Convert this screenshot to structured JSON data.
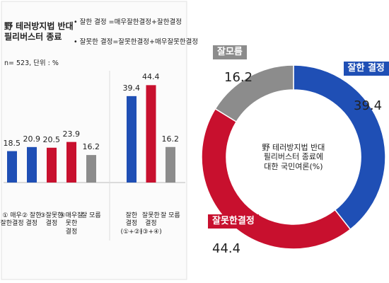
{
  "header": {
    "title": "野 테러방지법 반대\n필리버스터 종료",
    "notes": [
      "• 잘한 결정 =매우잘한결정+잘한결정",
      "• 잘못한 결정=잘못한결정+매우잘못한결정"
    ],
    "sample": "n= 523, 단위 : %"
  },
  "chart_data": [
    {
      "type": "bar",
      "categories": [
        "① 매우\n잘한결정",
        "② 잘한\n결정",
        "③잘못한\n결정",
        "④매우잘\n못한\n결정",
        "잘 모름"
      ],
      "values": [
        18.5,
        20.9,
        20.5,
        23.9,
        16.2
      ],
      "colors": [
        "#1f4fb5",
        "#1f4fb5",
        "#c8102e",
        "#c8102e",
        "#8c8c8c"
      ],
      "ylim": [
        0,
        50
      ]
    },
    {
      "type": "bar",
      "categories": [
        "잘한\n결정\n(①+②)",
        "잘못한\n결정\n(③+④)",
        "잘 모름"
      ],
      "values": [
        39.4,
        44.4,
        16.2
      ],
      "colors": [
        "#1f4fb5",
        "#c8102e",
        "#8c8c8c"
      ],
      "ylim": [
        0,
        50
      ]
    },
    {
      "type": "pie",
      "title": "野 테러방지법 반대\n필리버스터 종료에\n대한 국민여론(%)",
      "categories": [
        "잘한 결정",
        "잘못한결정",
        "잘모름"
      ],
      "values": [
        39.4,
        44.4,
        16.2
      ],
      "colors": [
        "#1f4fb5",
        "#c8102e",
        "#8c8c8c"
      ]
    }
  ]
}
